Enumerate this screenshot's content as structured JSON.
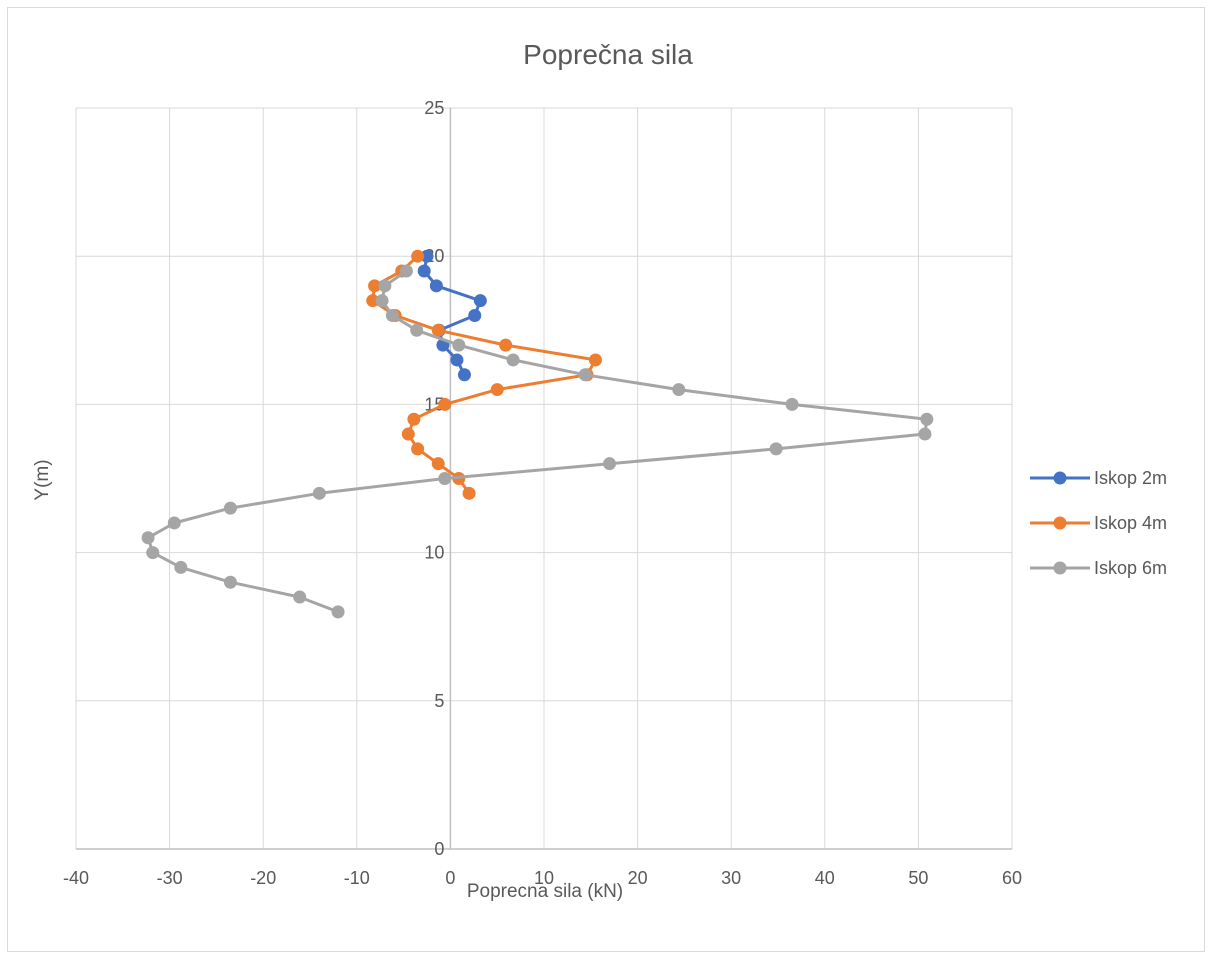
{
  "chart_data": {
    "type": "scatter",
    "title": "Poprečna sila",
    "xlabel": "Poprecna sila (kN)",
    "ylabel": "Y(m)",
    "xlim": [
      -40,
      60
    ],
    "ylim": [
      0,
      25
    ],
    "x_ticks": [
      -40,
      -30,
      -20,
      -10,
      0,
      10,
      20,
      30,
      40,
      50,
      60
    ],
    "y_ticks": [
      0,
      5,
      10,
      15,
      20,
      25
    ],
    "grid": true,
    "legend_position": "right",
    "series": [
      {
        "name": "Iskop 2m",
        "color": "#4472c4",
        "x": [
          -2.5,
          -2.8,
          -1.5,
          3.2,
          2.6,
          -1.2,
          -0.8,
          0.7,
          1.5
        ],
        "y": [
          20,
          19.5,
          19,
          18.5,
          18,
          17.5,
          17,
          16.5,
          16
        ]
      },
      {
        "name": "Iskop 4m",
        "color": "#ed7d31",
        "x": [
          -3.5,
          -5.2,
          -8.1,
          -8.3,
          -5.9,
          -1.3,
          5.9,
          15.5,
          14.6,
          5.0,
          -0.6,
          -3.9,
          -4.5,
          -3.5,
          -1.3,
          0.9,
          2.0
        ],
        "y": [
          20,
          19.5,
          19,
          18.5,
          18,
          17.5,
          17,
          16.5,
          16,
          15.5,
          15,
          14.5,
          14,
          13.5,
          13,
          12.5,
          12
        ]
      },
      {
        "name": "Iskop 6m",
        "color": "#a5a5a5",
        "x": [
          -4.7,
          -7.0,
          -7.3,
          -6.2,
          -3.6,
          0.9,
          6.7,
          14.4,
          24.4,
          36.5,
          50.9,
          50.7,
          34.8,
          17.0,
          -0.6,
          -14.0,
          -23.5,
          -29.5,
          -32.3,
          -31.8,
          -28.8,
          -23.5,
          -16.1,
          -12.0
        ],
        "y": [
          19.5,
          19,
          18.5,
          18,
          17.5,
          17,
          16.5,
          16,
          15.5,
          15,
          14.5,
          14,
          13.5,
          13,
          12.5,
          12,
          11.5,
          11,
          10.5,
          10,
          9.5,
          9,
          8.5,
          8
        ]
      }
    ]
  }
}
